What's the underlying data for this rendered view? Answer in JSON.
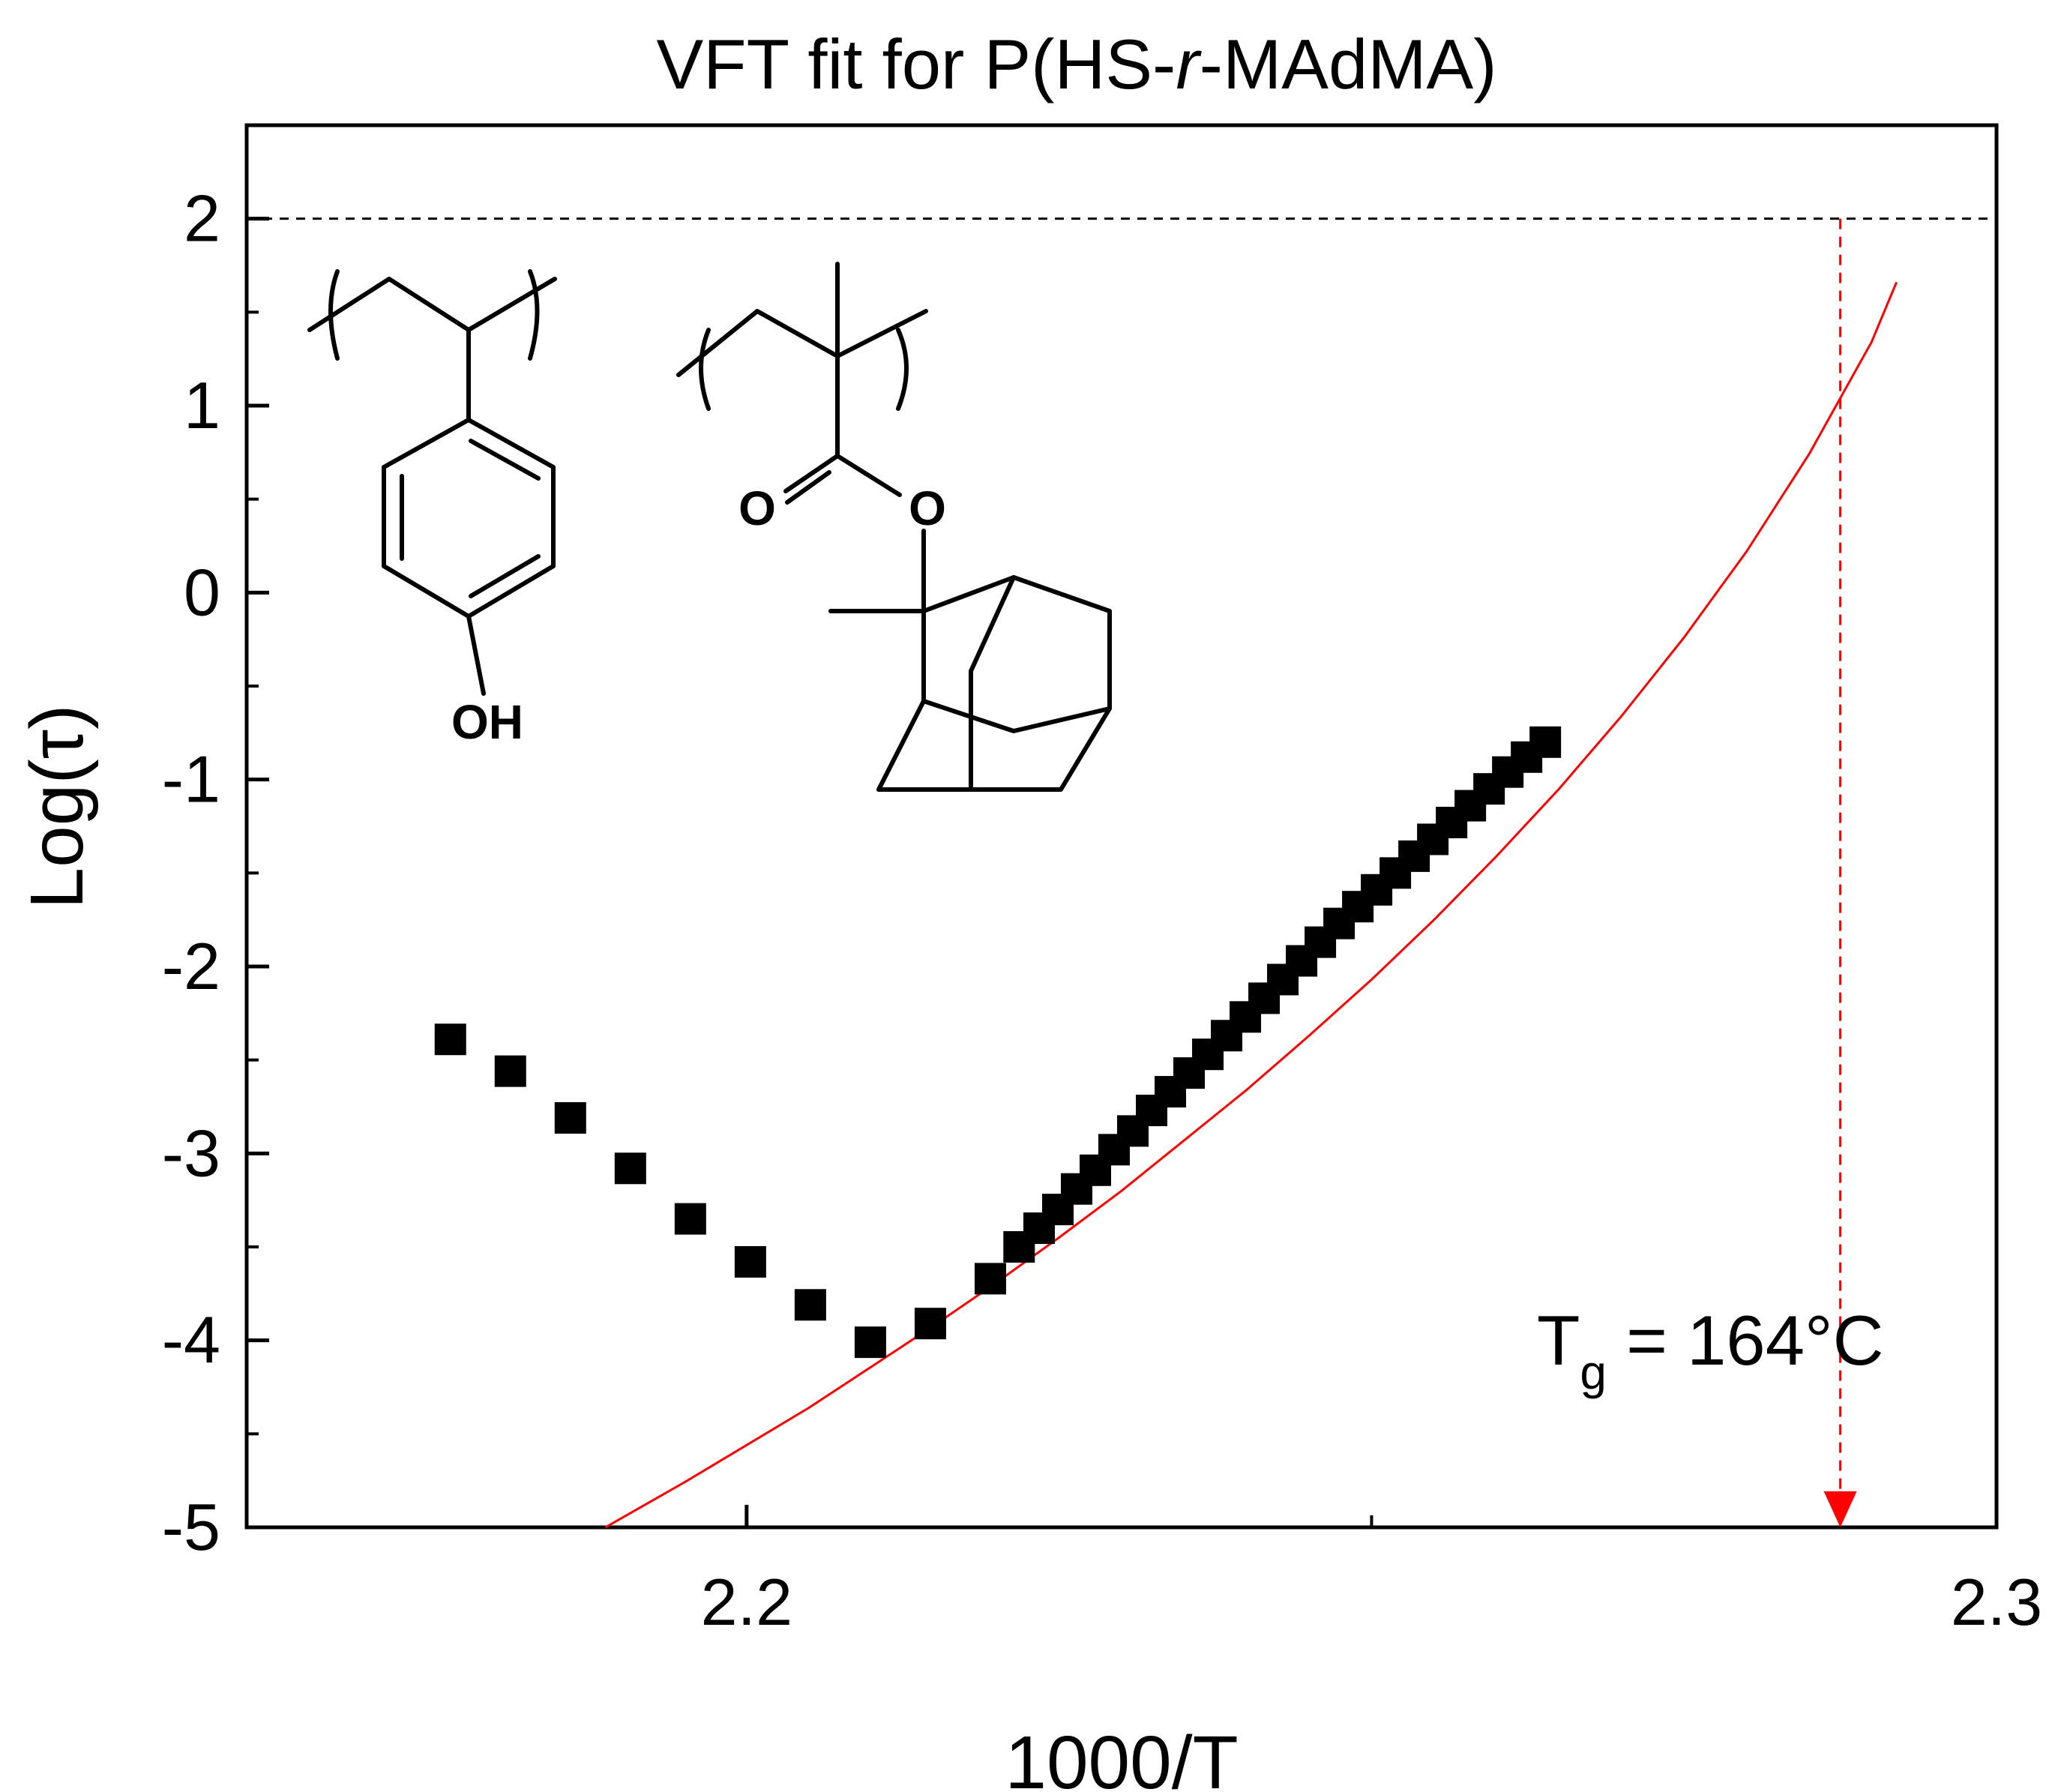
{
  "chart_data": {
    "type": "scatter",
    "title_parts": [
      "VFT fit for P(HS-",
      "r",
      "-MAdMA)"
    ],
    "xlabel": "1000/T",
    "ylabel": "Log(τ)",
    "xlim": [
      2.16,
      2.3
    ],
    "ylim": [
      -5,
      2.5
    ],
    "x_ticks": [
      2.2,
      2.3
    ],
    "x_minor_ticks": [
      2.25
    ],
    "y_ticks": [
      -5,
      -4,
      -3,
      -2,
      -1,
      0,
      1,
      2
    ],
    "series": [
      {
        "name": "data",
        "marker": "square",
        "color": "#000000",
        "x": [
          2.1763,
          2.1811,
          2.1859,
          2.1907,
          2.1955,
          2.2003,
          2.2051,
          2.2099,
          2.2147,
          2.2195,
          2.2218,
          2.2234,
          2.2249,
          2.2264,
          2.2279,
          2.2294,
          2.2309,
          2.2324,
          2.2339,
          2.2354,
          2.2369,
          2.2384,
          2.2399,
          2.2414,
          2.2429,
          2.2444,
          2.2459,
          2.2474,
          2.2489,
          2.2504,
          2.2519,
          2.2534,
          2.2549,
          2.2564,
          2.2579,
          2.2594,
          2.2609,
          2.2624,
          2.2639
        ],
        "y": [
          -2.39,
          -2.56,
          -2.81,
          -3.08,
          -3.35,
          -3.58,
          -3.81,
          -4.01,
          -3.91,
          -3.67,
          -3.5,
          -3.4,
          -3.3,
          -3.19,
          -3.09,
          -2.98,
          -2.88,
          -2.77,
          -2.67,
          -2.57,
          -2.47,
          -2.37,
          -2.27,
          -2.17,
          -2.07,
          -1.97,
          -1.87,
          -1.77,
          -1.68,
          -1.59,
          -1.5,
          -1.41,
          -1.32,
          -1.23,
          -1.14,
          -1.05,
          -0.96,
          -0.88,
          -0.8
        ]
      }
    ],
    "fit": {
      "name": "VFT fit",
      "color": "#ff0000",
      "x": [
        2.1887,
        2.195,
        2.2,
        2.205,
        2.21,
        2.215,
        2.22,
        2.225,
        2.23,
        2.235,
        2.24,
        2.245,
        2.25,
        2.255,
        2.26,
        2.265,
        2.27,
        2.275,
        2.28,
        2.285,
        2.29,
        2.292
      ],
      "y": [
        -5.0,
        -4.76,
        -4.56,
        -4.36,
        -4.14,
        -3.92,
        -3.69,
        -3.45,
        -3.2,
        -2.93,
        -2.66,
        -2.37,
        -2.07,
        -1.75,
        -1.41,
        -1.05,
        -0.66,
        -0.24,
        0.22,
        0.74,
        1.34,
        1.66
      ]
    },
    "reference_line": {
      "y": 2,
      "style": "dashed",
      "color": "#000000"
    },
    "tg_marker": {
      "x": 2.2875,
      "y_from": 2,
      "y_to": -5,
      "color": "#ff0000",
      "style": "dashed-arrow"
    },
    "annotation": {
      "text_main": "T",
      "text_sub": "g",
      "text_rest": " = 164°C"
    },
    "structure_labels": {
      "hydroxyl": "OH",
      "carbonyl_oxygen": "O",
      "ester_oxygen": "O"
    }
  }
}
